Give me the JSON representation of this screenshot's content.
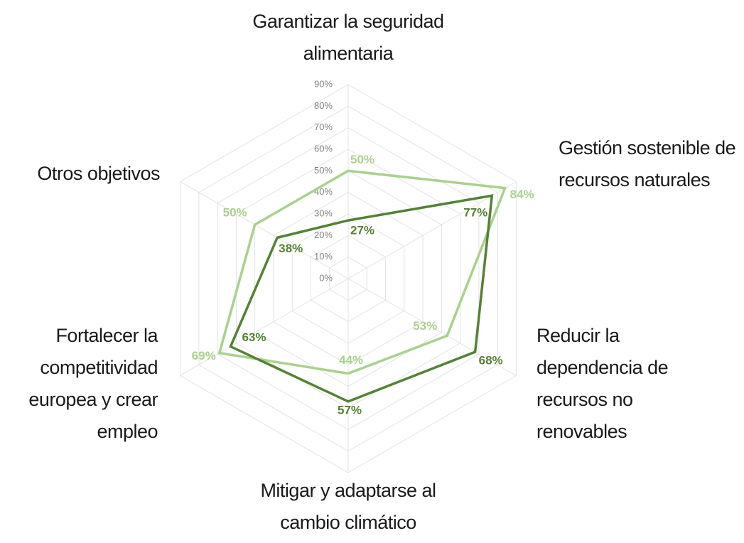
{
  "chart_data": {
    "type": "radar",
    "categories": [
      "Garantizar la seguridad alimentaria",
      "Gestión sostenible de recursos naturales",
      "Reducir la dependencia de recursos no renovables",
      "Mitigar y adaptarse al cambio climático",
      "Fortalecer la competitividad europea y crear empleo",
      "Otros objetivos"
    ],
    "series": [
      {
        "color": "#a9d18e",
        "values": [
          50,
          84,
          53,
          44,
          69,
          50
        ],
        "value_labels": [
          "50%",
          "84%",
          "53%",
          "44%",
          "69%",
          "50%"
        ]
      },
      {
        "color": "#548235",
        "values": [
          27,
          77,
          68,
          57,
          63,
          38
        ],
        "value_labels": [
          "27%",
          "77%",
          "68%",
          "57%",
          "63%",
          "38%"
        ]
      }
    ],
    "rlim": [
      0,
      90
    ],
    "rticks": [
      {
        "value": 0,
        "label": "0%"
      },
      {
        "value": 10,
        "label": "10%"
      },
      {
        "value": 20,
        "label": "20%"
      },
      {
        "value": 30,
        "label": "30%"
      },
      {
        "value": 40,
        "label": "40%"
      },
      {
        "value": 50,
        "label": "50%"
      },
      {
        "value": 60,
        "label": "60%"
      },
      {
        "value": 70,
        "label": "70%"
      },
      {
        "value": 80,
        "label": "80%"
      },
      {
        "value": 90,
        "label": "90%"
      }
    ],
    "grid": true
  }
}
